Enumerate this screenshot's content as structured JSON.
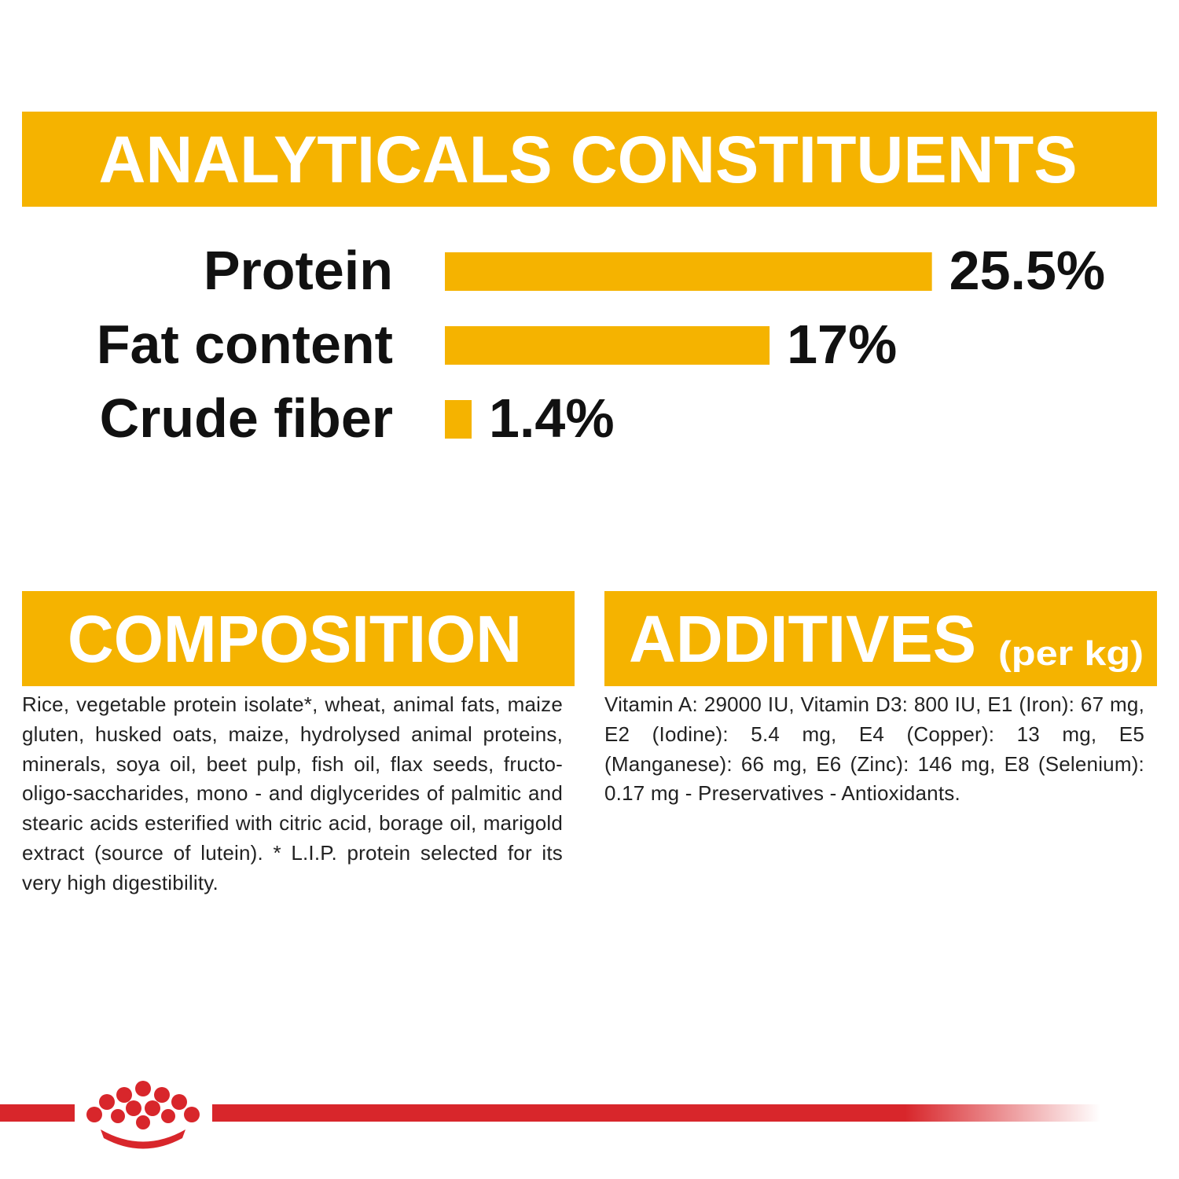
{
  "chart_data": {
    "type": "bar",
    "title": "ANALYTICALS CONSTITUENTS",
    "categories": [
      "Protein",
      "Fat content",
      "Crude fiber"
    ],
    "values": [
      25.5,
      17,
      1.4
    ],
    "value_labels": [
      "25.5%",
      "17%",
      "1.4%"
    ],
    "color": "#f5b300"
  },
  "composition": {
    "title": "COMPOSITION",
    "text": "Rice, vegetable protein isolate*, wheat, animal fats, maize gluten, husked oats, maize, hydrolysed animal proteins, minerals, soya oil, beet pulp, fish oil, flax seeds, fructo-oligo-saccharides, mono - and diglycerides of palmitic and stearic acids esterified with citric acid, borage oil, marigold extract (source of lutein). * L.I.P. protein selected for its very high digestibility."
  },
  "additives": {
    "title": "ADDITIVES",
    "unit": "(per kg)",
    "text": "Vitamin A: 29000 IU, Vitamin D3: 800 IU, E1 (Iron): 67 mg, E2 (Iodine): 5.4 mg, E4 (Copper): 13 mg, E5 (Manganese): 66 mg, E6 (Zinc): 146 mg, E8 (Selenium): 0.17 mg - Preservatives - Antioxidants."
  }
}
